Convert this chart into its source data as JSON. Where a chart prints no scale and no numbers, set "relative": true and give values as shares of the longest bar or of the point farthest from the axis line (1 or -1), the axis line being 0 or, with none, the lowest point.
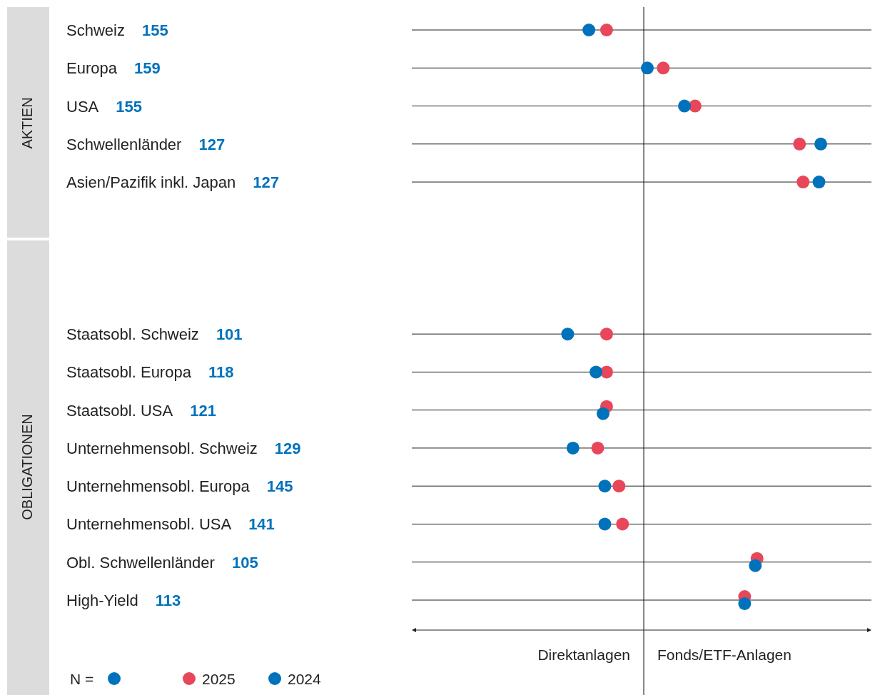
{
  "chart_data": {
    "type": "scatter",
    "orientation": "horizontal",
    "relative": true,
    "grid": "y",
    "marker": "circle",
    "legend": "bottom left",
    "categories": [
      "Schweiz",
      "Europa",
      "USA",
      "Schwellenländer",
      "Asien/Pazifik inkl. Japan",
      null,
      null,
      null,
      "Staatsobl. Schweiz",
      "Staatsobl. Europa",
      "Staatsobl. USA",
      "Unternehmensobl. Schweiz",
      "Unternehmensobl. Europa",
      "Unternehmensobl. USA",
      "Obl. Schwellenländer",
      "High-Yield"
    ],
    "series": [
      {
        "name": "2025",
        "color": "#e8475a",
        "values": [
          -0.21,
          0.11,
          0.29,
          0.88,
          0.9,
          null,
          null,
          null,
          -0.21,
          -0.21,
          -0.21,
          -0.26,
          -0.14,
          -0.12,
          0.64,
          0.57
        ]
      },
      {
        "name": "2024",
        "color": "#0072bc",
        "values": [
          -0.31,
          0.02,
          0.23,
          1,
          0.99,
          null,
          null,
          null,
          -0.43,
          -0.27,
          -0.23,
          -0.4,
          -0.22,
          -0.22,
          0.63,
          0.57
        ]
      }
    ],
    "annotations": [
      "155",
      "159",
      "155",
      "127",
      "127",
      "101",
      "118",
      "121",
      "129",
      "145",
      "141",
      "105",
      "113",
      "AKTIEN",
      "OBLIGATIONEN",
      "Direktanlagen",
      "Fonds/ETF-Anlagen",
      "N ="
    ]
  }
}
